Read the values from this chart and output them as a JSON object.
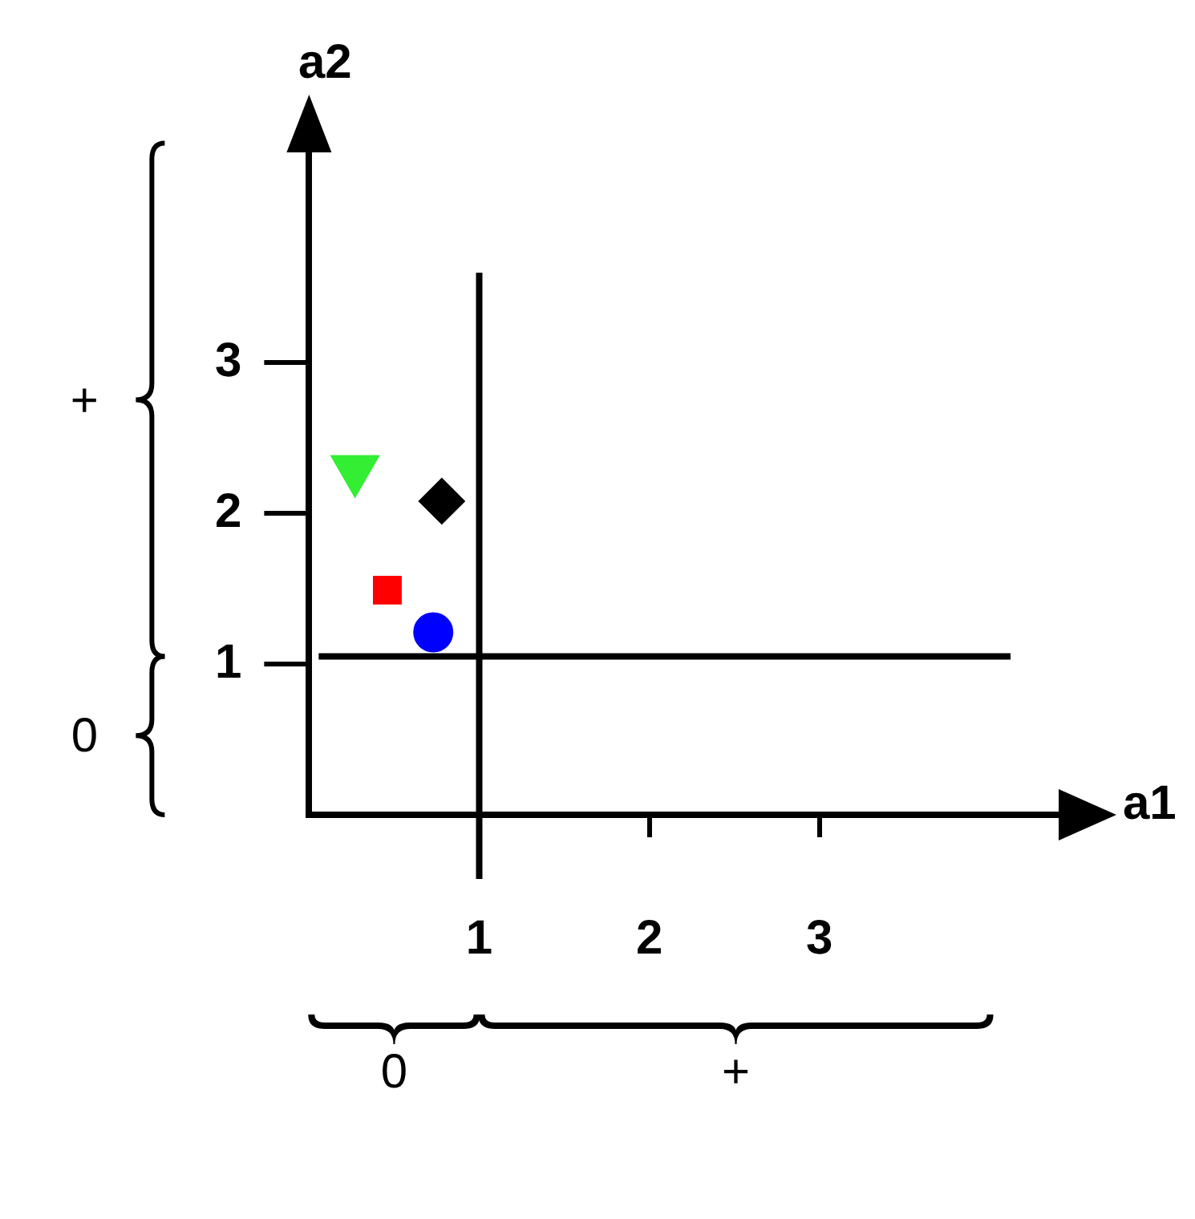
{
  "chart_data": {
    "type": "scatter",
    "xlabel": "a1",
    "ylabel": "a2",
    "xlim": [
      0,
      4.5
    ],
    "ylim": [
      0,
      4.5
    ],
    "xticks": [
      1,
      2,
      3
    ],
    "yticks": [
      1,
      2,
      3
    ],
    "grid": false,
    "legend": false,
    "series": [
      {
        "x": [
          0.27
        ],
        "values": [
          2.29
        ],
        "color": "#33ee33",
        "marker": "triangle"
      },
      {
        "x": [
          0.78
        ],
        "values": [
          2.08
        ],
        "color": "#000000",
        "marker": "diamond"
      },
      {
        "x": [
          0.46
        ],
        "values": [
          1.49
        ],
        "color": "#ff0000",
        "marker": "square"
      },
      {
        "x": [
          0.73
        ],
        "values": [
          1.21
        ],
        "color": "#0000ff",
        "marker": "circle"
      }
    ],
    "ref_lines": [
      {
        "axis": "x",
        "value": 1,
        "color": "#000000"
      },
      {
        "axis": "y",
        "value": 1.05,
        "color": "#000000"
      }
    ],
    "annotations": [
      "+",
      "0",
      "0",
      "+"
    ]
  }
}
